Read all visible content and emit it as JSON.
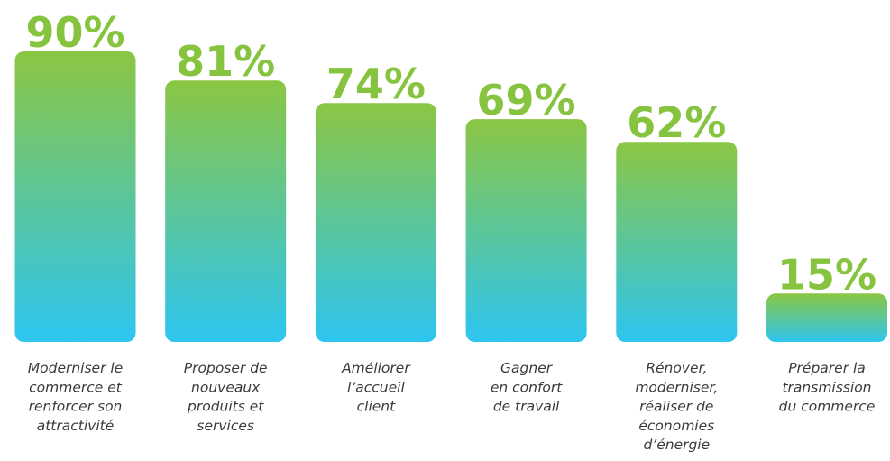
{
  "chart_data": {
    "type": "bar",
    "categories": [
      [
        "Moderniser le",
        "commerce et",
        "renforcer son",
        "attractivité"
      ],
      [
        "Proposer de",
        "nouveaux",
        "produits et",
        "services"
      ],
      [
        "Améliorer",
        "l’accueil",
        "client"
      ],
      [
        "Gagner",
        "en confort",
        "de travail"
      ],
      [
        "Rénover,",
        "moderniser,",
        "réaliser de",
        "économies",
        "d’énergie"
      ],
      [
        "Préparer la",
        "transmission",
        "du commerce"
      ]
    ],
    "values": [
      90,
      81,
      74,
      69,
      62,
      15
    ],
    "value_labels": [
      "90%",
      "81%",
      "74%",
      "69%",
      "62%",
      "15%"
    ],
    "ylim": [
      0,
      90
    ],
    "grid": false,
    "legend": "none"
  },
  "colors": {
    "value_text": "#86c440",
    "bar_top": "#8bc643",
    "bar_bottom": "#2dc5f0",
    "category_text": "#3a3a3a"
  }
}
